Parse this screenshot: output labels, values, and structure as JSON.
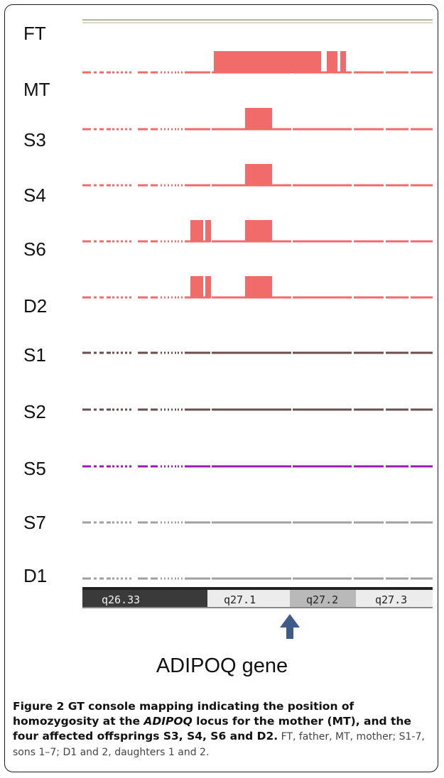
{
  "tracks": [
    {
      "label": "FT"
    },
    {
      "label": "MT"
    },
    {
      "label": "S3"
    },
    {
      "label": "S4"
    },
    {
      "label": "S6"
    },
    {
      "label": "D2"
    },
    {
      "label": "S1"
    },
    {
      "label": "S2"
    },
    {
      "label": "S5"
    },
    {
      "label": "S7"
    },
    {
      "label": "D1"
    }
  ],
  "colors": {
    "homozygous": "#f26b6b",
    "brown": "#6b4e4e",
    "purple": "#9b1ab3",
    "gray": "#a0a0a0",
    "ft_line": "#b8b2a2"
  },
  "bands": [
    {
      "label": "q26.33",
      "style": "dark"
    },
    {
      "label": "q27.1",
      "style": "light"
    },
    {
      "label": "q27.2",
      "style": "mid"
    },
    {
      "label": "q27.3",
      "style": "light"
    }
  ],
  "gene_label": "ADIPOQ gene",
  "caption": {
    "bold_prefix": "Figure 2 GT console mapping indicating the position of homozygosity at the ",
    "bold_italic": "ADIPOQ",
    "bold_suffix": " locus for the mother (MT), and the four affected offsprings S3, S4, S6 and D2.",
    "rest": " FT, father, MT, mother; S1-7, sons 1–7; D1 and 2, daughters 1 and 2."
  }
}
